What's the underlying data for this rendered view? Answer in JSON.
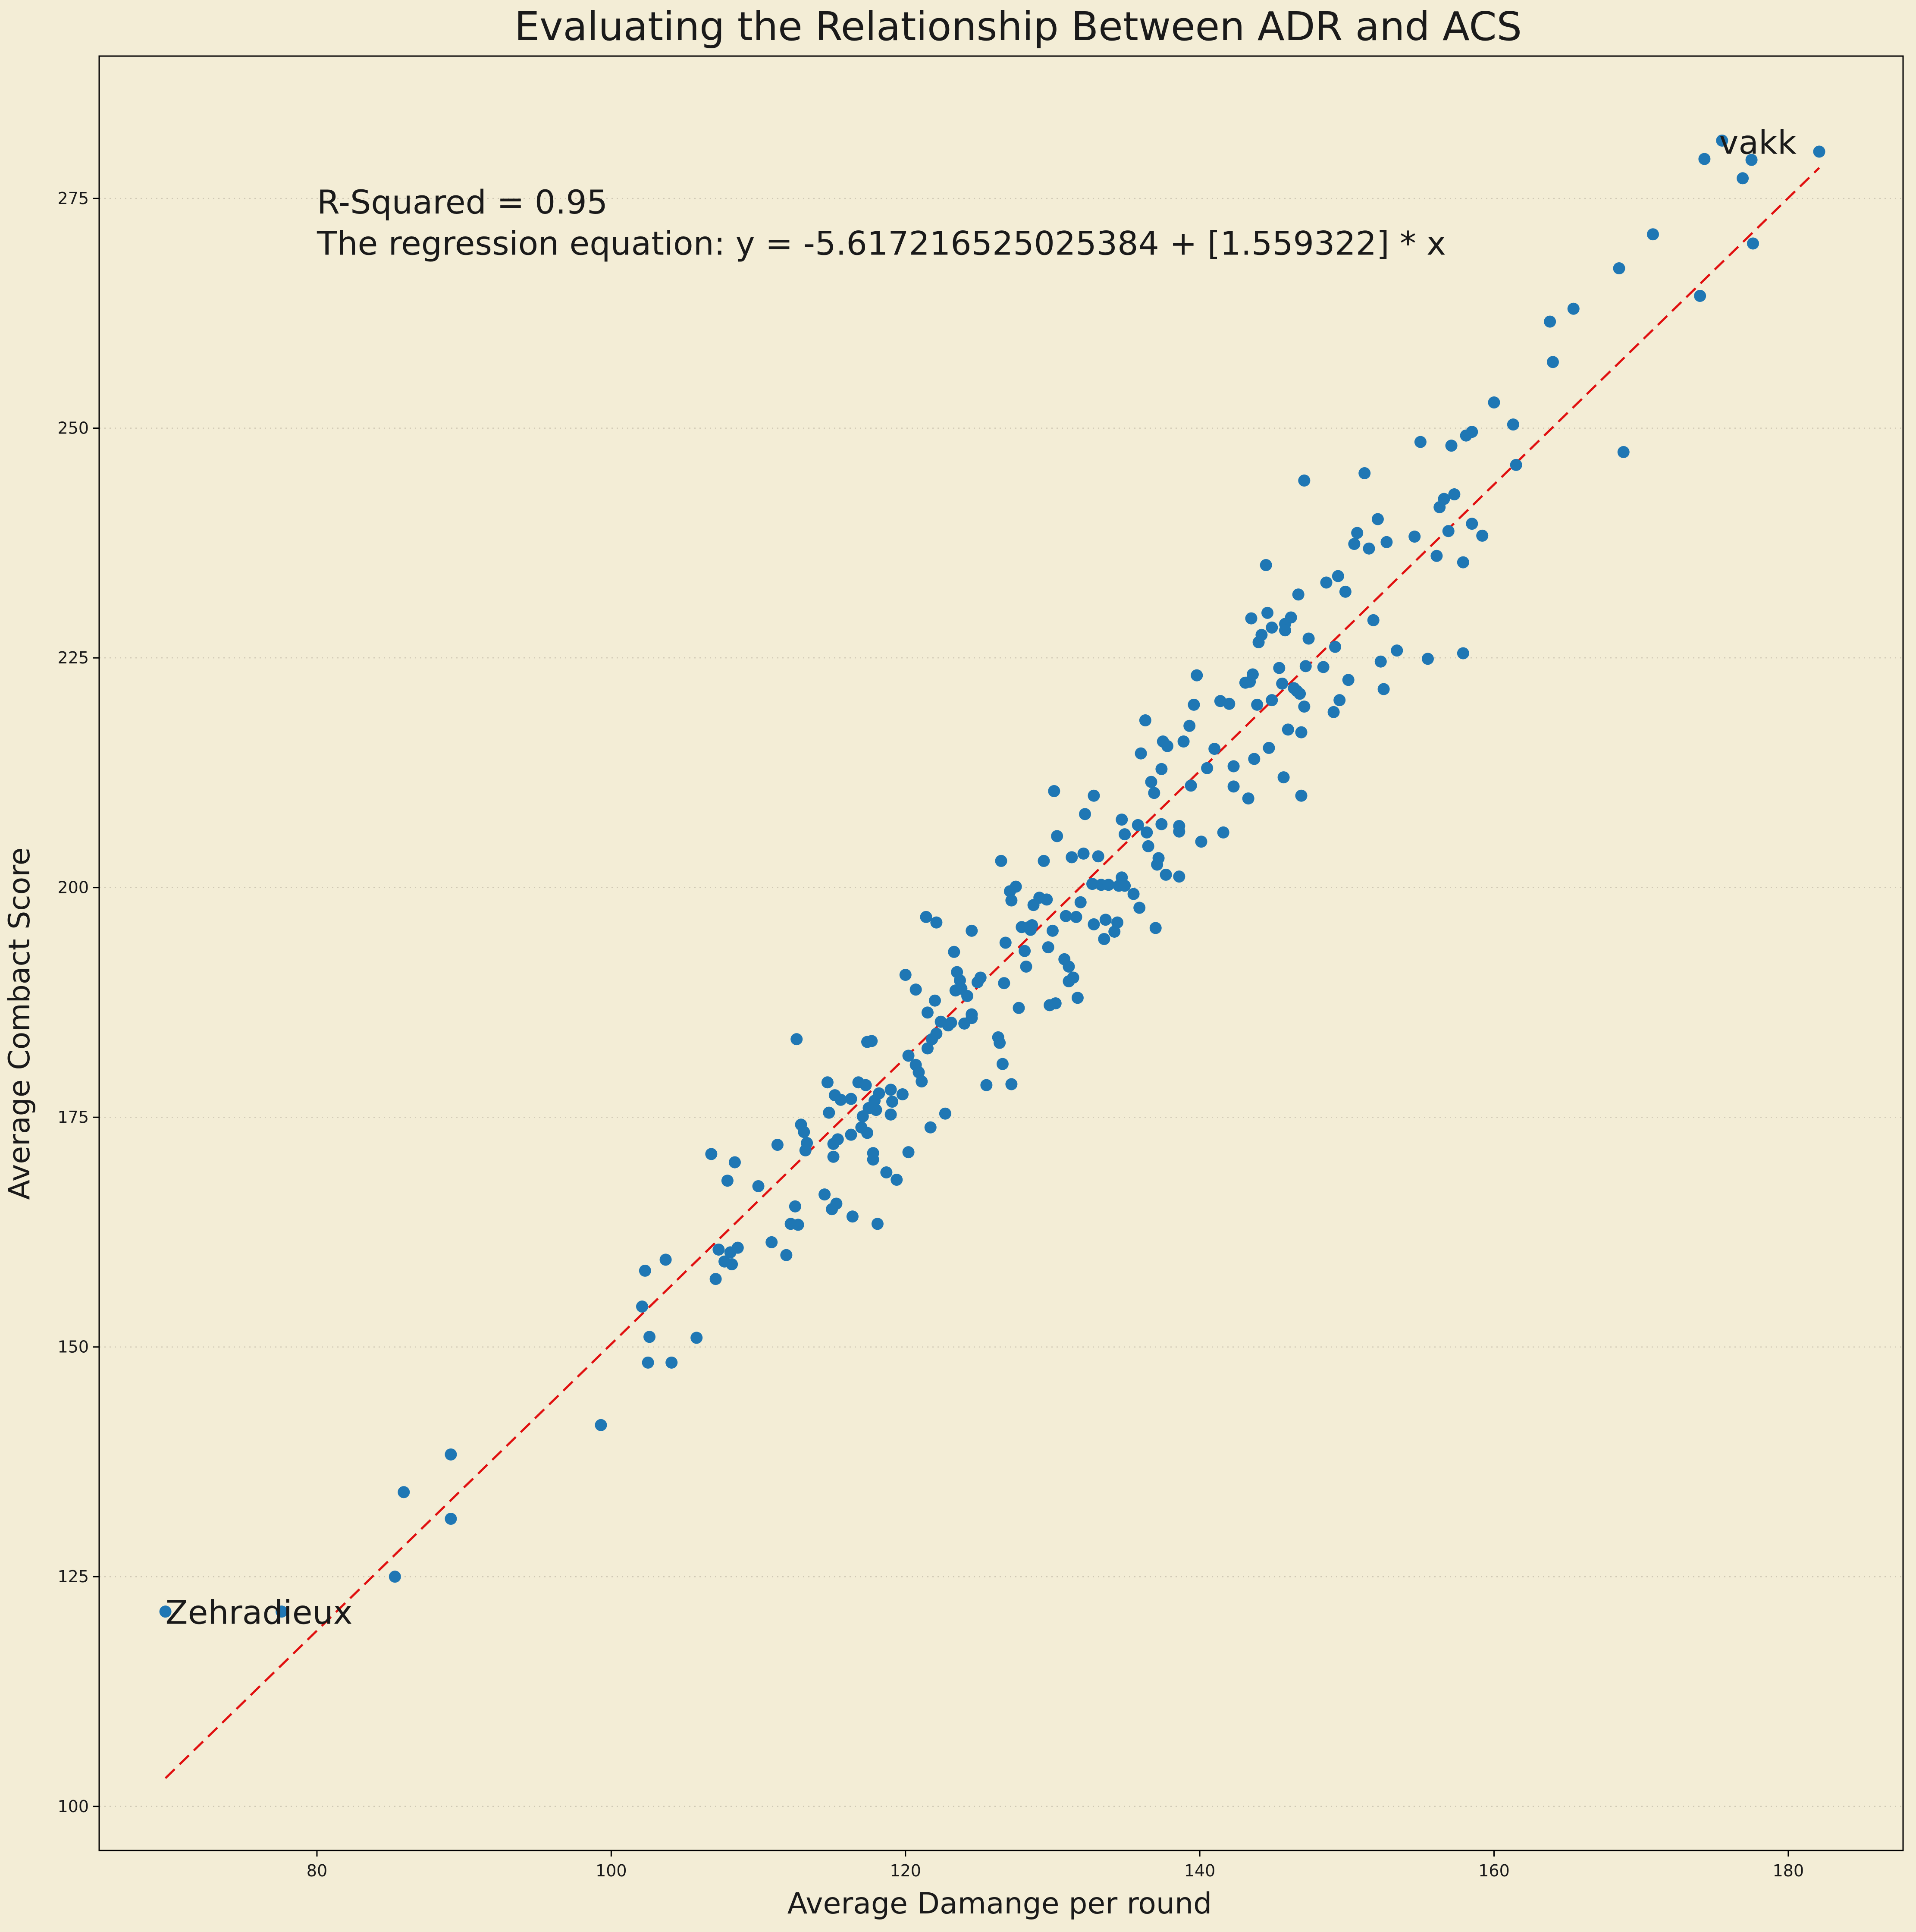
{
  "chart_data": {
    "type": "scatter",
    "title": "Evaluating the Relationship Between ADR  and ACS",
    "xlabel": "Average Damange per round",
    "ylabel": "Average Combact Score",
    "xlim": [
      65.2,
      187.8
    ],
    "ylim": [
      95.2,
      290.5
    ],
    "xticks": [
      80,
      100,
      120,
      140,
      160,
      180
    ],
    "yticks": [
      100,
      125,
      150,
      175,
      200,
      225,
      250,
      275
    ],
    "grid": "horizontal dotted",
    "colors": {
      "background": "#f3edd6",
      "points": "#1f77b4",
      "fit_line": "#e01010"
    },
    "annotations": [
      {
        "text": "R-Squared = 0.95",
        "x": 80,
        "y": 274.5
      },
      {
        "text": "The regression equation: y = -5.617216525025384 + [1.559322] * x",
        "x": 80,
        "y": 270
      },
      {
        "text": "vakk",
        "x": 175.3,
        "y": 281
      },
      {
        "text": "Zehradieux",
        "x": 69.7,
        "y": 121
      }
    ],
    "regression": {
      "intercept": -5.617216525025384,
      "slope": 1.559322,
      "x_range": [
        69.7,
        182.1
      ],
      "style": "dashed"
    },
    "series": [
      {
        "points": [
          [
            69.7,
            121.2
          ],
          [
            77.6,
            121.2
          ],
          [
            85.3,
            125
          ],
          [
            85.9,
            134.2
          ],
          [
            89.1,
            131.3
          ],
          [
            89.1,
            138.3
          ],
          [
            99.3,
            141.5
          ],
          [
            102.1,
            154.4
          ],
          [
            102.3,
            158.3
          ],
          [
            102.5,
            148.3
          ],
          [
            102.6,
            151.1
          ],
          [
            103.7,
            159.5
          ],
          [
            104.1,
            148.3
          ],
          [
            105.8,
            151
          ],
          [
            106.8,
            171
          ],
          [
            107.1,
            157.4
          ],
          [
            107.3,
            160.6
          ],
          [
            107.7,
            159.3
          ],
          [
            107.9,
            168.1
          ],
          [
            108.1,
            160.3
          ],
          [
            108.2,
            159
          ],
          [
            108.4,
            170.1
          ],
          [
            108.6,
            160.8
          ],
          [
            110,
            167.5
          ],
          [
            110.9,
            161.4
          ],
          [
            111.3,
            172
          ],
          [
            111.9,
            160
          ],
          [
            112.2,
            163.4
          ],
          [
            112.5,
            165.3
          ],
          [
            112.6,
            183.5
          ],
          [
            112.7,
            163.3
          ],
          [
            112.9,
            174.2
          ],
          [
            113.1,
            173.4
          ],
          [
            113.2,
            171.4
          ],
          [
            113.3,
            172.2
          ],
          [
            114.5,
            166.6
          ],
          [
            114.7,
            178.8
          ],
          [
            114.8,
            175.5
          ],
          [
            115,
            165
          ],
          [
            115.1,
            172.1
          ],
          [
            115.1,
            170.7
          ],
          [
            115.2,
            177.4
          ],
          [
            115.3,
            165.6
          ],
          [
            115.4,
            172.6
          ],
          [
            115.6,
            176.9
          ],
          [
            116.3,
            173.1
          ],
          [
            116.3,
            177
          ],
          [
            116.4,
            164.2
          ],
          [
            116.8,
            178.8
          ],
          [
            117,
            173.9
          ],
          [
            117.1,
            175.1
          ],
          [
            117.3,
            178.5
          ],
          [
            117.4,
            183.2
          ],
          [
            117.4,
            173.3
          ],
          [
            117.5,
            176
          ],
          [
            117.7,
            183.3
          ],
          [
            117.8,
            170.4
          ],
          [
            117.8,
            171.1
          ],
          [
            117.9,
            176.8
          ],
          [
            118,
            175.8
          ],
          [
            118.1,
            163.4
          ],
          [
            118.2,
            177.6
          ],
          [
            118.7,
            169
          ],
          [
            119,
            175.3
          ],
          [
            119,
            178
          ],
          [
            119.1,
            176.7
          ],
          [
            119.4,
            168.2
          ],
          [
            119.8,
            177.5
          ],
          [
            120,
            190.5
          ],
          [
            120.2,
            171.2
          ],
          [
            120.2,
            181.7
          ],
          [
            120.7,
            188.9
          ],
          [
            120.7,
            180.7
          ],
          [
            120.9,
            179.9
          ],
          [
            121.1,
            178.9
          ],
          [
            121.4,
            196.8
          ],
          [
            121.5,
            182.5
          ],
          [
            121.5,
            186.4
          ],
          [
            121.7,
            173.9
          ],
          [
            121.8,
            183.5
          ],
          [
            122,
            187.7
          ],
          [
            122.1,
            184.1
          ],
          [
            122.1,
            196.2
          ],
          [
            122.4,
            185.4
          ],
          [
            122.7,
            175.4
          ],
          [
            122.9,
            185
          ],
          [
            123.1,
            185.3
          ],
          [
            123.3,
            193
          ],
          [
            123.4,
            188.8
          ],
          [
            123.5,
            190.8
          ],
          [
            123.7,
            189.9
          ],
          [
            123.8,
            189
          ],
          [
            124,
            185.2
          ],
          [
            124.2,
            188.2
          ],
          [
            124.5,
            195.3
          ],
          [
            124.5,
            186.2
          ],
          [
            124.5,
            185.8
          ],
          [
            124.9,
            189.7
          ],
          [
            125.1,
            190.2
          ],
          [
            125.5,
            178.5
          ],
          [
            126.3,
            183.7
          ],
          [
            126.4,
            183.1
          ],
          [
            126.5,
            202.9
          ],
          [
            126.6,
            180.8
          ],
          [
            126.7,
            189.6
          ],
          [
            126.8,
            194
          ],
          [
            127.1,
            199.6
          ],
          [
            127.2,
            198.6
          ],
          [
            127.2,
            178.6
          ],
          [
            127.5,
            200.1
          ],
          [
            127.7,
            186.9
          ],
          [
            127.9,
            195.7
          ],
          [
            128.1,
            193.1
          ],
          [
            128.2,
            191.4
          ],
          [
            128.4,
            195.7
          ],
          [
            128.5,
            195.4
          ],
          [
            128.6,
            195.9
          ],
          [
            128.7,
            198.1
          ],
          [
            129.1,
            198.9
          ],
          [
            129.4,
            202.9
          ],
          [
            129.6,
            198.7
          ],
          [
            129.7,
            193.5
          ],
          [
            129.8,
            187.2
          ],
          [
            130,
            195.3
          ],
          [
            130.1,
            210.5
          ],
          [
            130.2,
            187.4
          ],
          [
            130.3,
            205.6
          ],
          [
            130.8,
            192.2
          ],
          [
            130.9,
            196.9
          ],
          [
            131.1,
            189.8
          ],
          [
            131.1,
            191.4
          ],
          [
            131.3,
            203.3
          ],
          [
            131.4,
            190.2
          ],
          [
            131.6,
            196.8
          ],
          [
            131.7,
            188
          ],
          [
            131.9,
            198.4
          ],
          [
            132.1,
            203.7
          ],
          [
            132.2,
            208
          ],
          [
            132.7,
            200.4
          ],
          [
            132.8,
            210
          ],
          [
            132.8,
            196
          ],
          [
            133.1,
            203.4
          ],
          [
            133.3,
            200.3
          ],
          [
            133.5,
            194.4
          ],
          [
            133.6,
            196.5
          ],
          [
            133.8,
            200.3
          ],
          [
            134.2,
            195.2
          ],
          [
            134.4,
            196.2
          ],
          [
            134.5,
            200.2
          ],
          [
            134.7,
            207.4
          ],
          [
            134.7,
            201.1
          ],
          [
            134.9,
            200.2
          ],
          [
            134.9,
            205.8
          ],
          [
            135.5,
            199.3
          ],
          [
            135.8,
            206.8
          ],
          [
            135.9,
            197.8
          ],
          [
            136,
            214.6
          ],
          [
            136.3,
            218.2
          ],
          [
            136.4,
            206
          ],
          [
            136.5,
            204.5
          ],
          [
            136.7,
            211.5
          ],
          [
            136.9,
            210.3
          ],
          [
            137,
            195.6
          ],
          [
            137.1,
            202.5
          ],
          [
            137.2,
            203.2
          ],
          [
            137.4,
            212.9
          ],
          [
            137.4,
            206.9
          ],
          [
            137.5,
            215.9
          ],
          [
            137.7,
            201.4
          ],
          [
            137.8,
            215.4
          ],
          [
            138.6,
            206.1
          ],
          [
            138.6,
            206.7
          ],
          [
            138.6,
            201.2
          ],
          [
            138.9,
            215.9
          ],
          [
            139.3,
            217.6
          ],
          [
            139.4,
            211.1
          ],
          [
            139.6,
            219.9
          ],
          [
            139.8,
            223.1
          ],
          [
            140.1,
            205
          ],
          [
            140.5,
            213
          ],
          [
            141,
            215.1
          ],
          [
            141.4,
            220.3
          ],
          [
            141.6,
            206
          ],
          [
            142,
            220
          ],
          [
            142.3,
            211
          ],
          [
            142.3,
            213.2
          ],
          [
            143.1,
            222.3
          ],
          [
            143.3,
            209.7
          ],
          [
            143.4,
            222.4
          ],
          [
            143.5,
            229.3
          ],
          [
            143.6,
            223.2
          ],
          [
            143.7,
            214
          ],
          [
            143.9,
            219.9
          ],
          [
            144,
            226.7
          ],
          [
            144.2,
            227.5
          ],
          [
            144.5,
            235.1
          ],
          [
            144.6,
            229.9
          ],
          [
            144.7,
            215.2
          ],
          [
            144.9,
            220.4
          ],
          [
            144.9,
            228.3
          ],
          [
            145.4,
            223.9
          ],
          [
            145.6,
            222.2
          ],
          [
            145.7,
            212
          ],
          [
            145.8,
            228.7
          ],
          [
            145.8,
            228
          ],
          [
            146,
            217.2
          ],
          [
            146.2,
            229.4
          ],
          [
            146.4,
            221.7
          ],
          [
            146.6,
            221.4
          ],
          [
            146.7,
            231.9
          ],
          [
            146.8,
            221.1
          ],
          [
            146.9,
            216.9
          ],
          [
            146.9,
            210
          ],
          [
            147.1,
            244.3
          ],
          [
            147.1,
            219.7
          ],
          [
            147.2,
            224.1
          ],
          [
            147.4,
            227.1
          ],
          [
            148.4,
            224
          ],
          [
            148.6,
            233.2
          ],
          [
            149.1,
            219.1
          ],
          [
            149.2,
            226.2
          ],
          [
            149.4,
            233.9
          ],
          [
            149.5,
            220.4
          ],
          [
            149.9,
            232.2
          ],
          [
            150.1,
            222.6
          ],
          [
            150.5,
            237.4
          ],
          [
            150.7,
            238.6
          ],
          [
            151.2,
            245.1
          ],
          [
            151.5,
            236.9
          ],
          [
            151.8,
            229.1
          ],
          [
            152.1,
            240.1
          ],
          [
            152.3,
            224.6
          ],
          [
            152.5,
            221.6
          ],
          [
            152.7,
            237.6
          ],
          [
            153.4,
            225.8
          ],
          [
            154.6,
            238.2
          ],
          [
            155,
            248.5
          ],
          [
            155.5,
            224.9
          ],
          [
            156.1,
            236.1
          ],
          [
            156.3,
            241.4
          ],
          [
            156.6,
            242.3
          ],
          [
            156.9,
            238.8
          ],
          [
            157.1,
            248.1
          ],
          [
            157.3,
            242.8
          ],
          [
            157.9,
            225.5
          ],
          [
            157.9,
            235.4
          ],
          [
            158.1,
            249.2
          ],
          [
            158.5,
            249.6
          ],
          [
            158.5,
            239.6
          ],
          [
            159.2,
            238.3
          ],
          [
            160,
            252.8
          ],
          [
            161.3,
            250.4
          ],
          [
            161.5,
            246
          ],
          [
            163.8,
            261.6
          ],
          [
            164,
            257.2
          ],
          [
            165.4,
            263
          ],
          [
            168.5,
            267.4
          ],
          [
            168.8,
            247.4
          ],
          [
            170.8,
            271.1
          ],
          [
            174,
            264.4
          ],
          [
            174.3,
            279.3
          ],
          [
            175.5,
            281.3
          ],
          [
            176.9,
            277.2
          ],
          [
            177.5,
            279.2
          ],
          [
            177.6,
            270.1
          ],
          [
            182.1,
            280.1
          ]
        ]
      }
    ]
  }
}
